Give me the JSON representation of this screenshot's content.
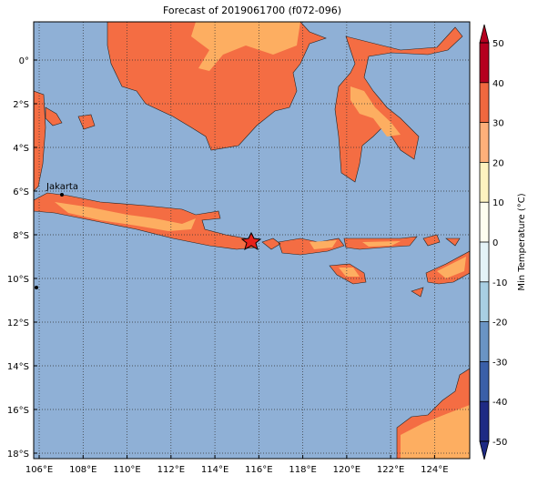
{
  "map": {
    "title": "Forecast of 2019061700 (f072-096)",
    "xlim": [
      105.75,
      125.6
    ],
    "ylim": [
      -18.25,
      1.75
    ],
    "xticks": [
      {
        "value": 106,
        "label": "106°E"
      },
      {
        "value": 108,
        "label": "108°E"
      },
      {
        "value": 110,
        "label": "110°E"
      },
      {
        "value": 112,
        "label": "112°E"
      },
      {
        "value": 114,
        "label": "114°E"
      },
      {
        "value": 116,
        "label": "116°E"
      },
      {
        "value": 118,
        "label": "118°E"
      },
      {
        "value": 120,
        "label": "120°E"
      },
      {
        "value": 122,
        "label": "122°E"
      },
      {
        "value": 124,
        "label": "124°E"
      }
    ],
    "yticks": [
      {
        "value": 0,
        "label": "0°"
      },
      {
        "value": -2,
        "label": "2°S"
      },
      {
        "value": -4,
        "label": "4°S"
      },
      {
        "value": -6,
        "label": "6°S"
      },
      {
        "value": -8,
        "label": "8°S"
      },
      {
        "value": -10,
        "label": "10°S"
      },
      {
        "value": -12,
        "label": "12°S"
      },
      {
        "value": -14,
        "label": "14°S"
      },
      {
        "value": -16,
        "label": "16°S"
      },
      {
        "value": -18,
        "label": "18°S"
      }
    ],
    "grid": true,
    "city": "Jakarta",
    "colorbar": {
      "label": "Min Temperature (°C)",
      "lim": [
        -50,
        50
      ],
      "ticks": [
        -50,
        -40,
        -30,
        -20,
        -10,
        0,
        10,
        20,
        30,
        40,
        50
      ],
      "colors": [
        "#1e2a84",
        "#3a5fa8",
        "#6a94c4",
        "#a8cfe3",
        "#e4f3f7",
        "#fdfdf0",
        "#fef3c0",
        "#fdb07a",
        "#f0683f",
        "#b5001f"
      ]
    }
  }
}
